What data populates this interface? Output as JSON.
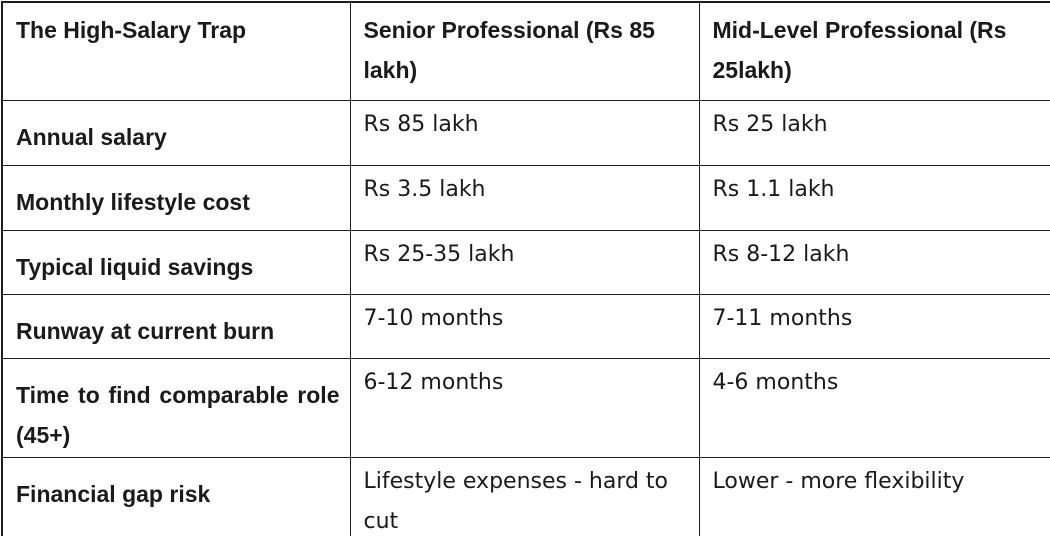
{
  "chart_data": {
    "type": "table",
    "title": "The High-Salary Trap",
    "columns": [
      "The High-Salary Trap",
      "Senior Professional (Rs 85 lakh)",
      "Mid-Level Professional (Rs 25lakh)"
    ],
    "rows": [
      [
        "Annual salary",
        "Rs 85 lakh",
        "Rs 25 lakh"
      ],
      [
        "Monthly lifestyle cost",
        "Rs 3.5 lakh",
        "Rs 1.1 lakh"
      ],
      [
        "Typical liquid savings",
        "Rs 25-35 lakh",
        "Rs 8-12 lakh"
      ],
      [
        "Runway at current burn",
        "7-10 months",
        "7-11 months"
      ],
      [
        "Time to find comparable role (45+)",
        "6-12 months",
        "4-6 months"
      ],
      [
        "Financial gap risk",
        "Lifestyle expenses - hard to cut",
        "Lower - more flexibility"
      ]
    ]
  },
  "colors": {
    "border": "#1d1d1d",
    "text": "#1a1a1a",
    "background": "#ffffff"
  }
}
